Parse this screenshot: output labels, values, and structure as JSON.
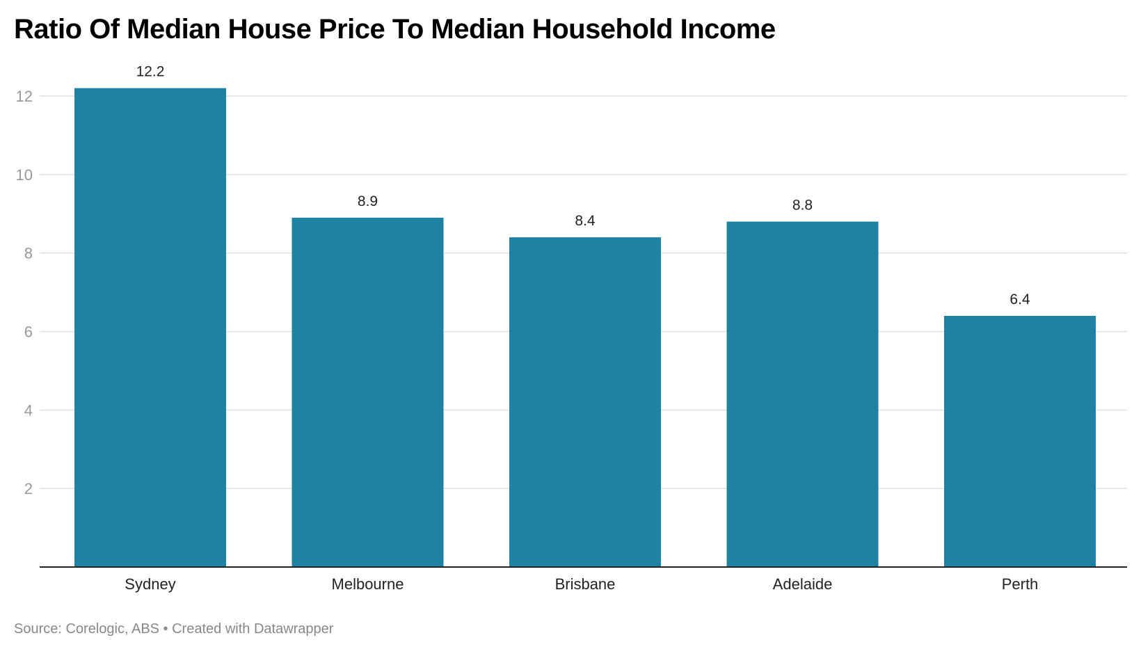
{
  "chart_data": {
    "type": "bar",
    "title": "Ratio Of Median House Price To Median Household Income",
    "categories": [
      "Sydney",
      "Melbourne",
      "Brisbane",
      "Adelaide",
      "Perth"
    ],
    "values": [
      12.2,
      8.9,
      8.4,
      8.8,
      6.4
    ],
    "value_labels": [
      "12.2",
      "8.9",
      "8.4",
      "8.8",
      "6.4"
    ],
    "xlabel": "",
    "ylabel": "",
    "ylim": [
      0,
      12.5
    ],
    "yticks": [
      2,
      4,
      6,
      8,
      10,
      12
    ],
    "grid": true,
    "bar_color": "#1f82a2",
    "source": "Source: Corelogic, ABS • Created with Datawrapper"
  }
}
